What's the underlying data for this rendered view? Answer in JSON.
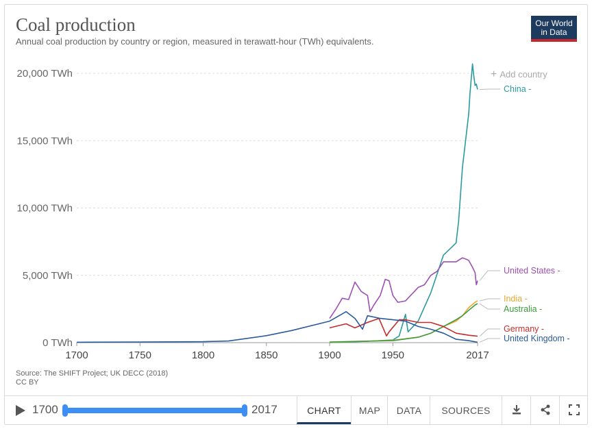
{
  "header": {
    "title": "Coal production",
    "subtitle": "Annual coal production by country or region, measured in terawatt-hour (TWh) equivalents.",
    "logo_line1": "Our World",
    "logo_line2": "in Data"
  },
  "add_country": "Add country",
  "source_line1": "Source: The SHIFT Project; UK DECC (2018)",
  "source_line2": "CC BY",
  "footer": {
    "start_year": "1700",
    "end_year": "2017",
    "tabs": [
      "CHART",
      "MAP",
      "DATA",
      "SOURCES"
    ],
    "active_tab": "CHART"
  },
  "colors": {
    "china": "#2a9a9e",
    "us": "#9d4fb4",
    "india": "#e8a730",
    "australia": "#3b9b3b",
    "germany": "#c42b2b",
    "uk": "#2a5a9b",
    "accent": "#3d8ef5"
  },
  "chart_data": {
    "type": "line",
    "title": "Coal production",
    "xlim": [
      1700,
      2017
    ],
    "ylim": [
      0,
      20000
    ],
    "unit": "TWh",
    "y_ticks": [
      "0 TWh",
      "5,000 TWh",
      "10,000 TWh",
      "15,000 TWh",
      "20,000 TWh"
    ],
    "y_tick_values": [
      0,
      5000,
      10000,
      15000,
      20000
    ],
    "x_ticks": [
      "1700",
      "1750",
      "1800",
      "1850",
      "1900",
      "1950",
      "2017"
    ],
    "x_tick_values": [
      1700,
      1750,
      1800,
      1850,
      1900,
      1950,
      2017
    ],
    "grid": true,
    "series": [
      {
        "name": "China",
        "key": "china",
        "label": "China -",
        "x": [
          1900,
          1930,
          1950,
          1955,
          1960,
          1962,
          1970,
          1980,
          1990,
          2000,
          2002,
          2005,
          2010,
          2011,
          2013,
          2014,
          2015,
          2016,
          2017
        ],
        "y": [
          0,
          100,
          200,
          500,
          2100,
          800,
          1600,
          3700,
          6500,
          7400,
          9000,
          13000,
          17000,
          18500,
          20700,
          19800,
          19100,
          19200,
          18800
        ]
      },
      {
        "name": "United States",
        "key": "us",
        "label": "United States -",
        "x": [
          1900,
          1905,
          1910,
          1915,
          1920,
          1925,
          1930,
          1932,
          1935,
          1940,
          1944,
          1947,
          1950,
          1954,
          1960,
          1965,
          1970,
          1975,
          1980,
          1985,
          1990,
          1995,
          2000,
          2005,
          2008,
          2010,
          2013,
          2015,
          2016,
          2017
        ],
        "y": [
          1800,
          2500,
          3300,
          3200,
          4500,
          3800,
          3500,
          2300,
          2800,
          3500,
          4700,
          4600,
          3500,
          3000,
          3100,
          3600,
          4100,
          4300,
          5000,
          5300,
          6000,
          6000,
          6000,
          6300,
          6200,
          6100,
          5600,
          5200,
          4300,
          4600
        ]
      },
      {
        "name": "India",
        "key": "india",
        "label": "India -",
        "x": [
          1900,
          1950,
          1970,
          1980,
          1990,
          2000,
          2005,
          2010,
          2015,
          2017
        ],
        "y": [
          20,
          180,
          400,
          700,
          1200,
          1600,
          2000,
          2600,
          3000,
          3100
        ]
      },
      {
        "name": "Australia",
        "key": "australia",
        "label": "Australia -",
        "x": [
          1900,
          1950,
          1970,
          1980,
          1990,
          2000,
          2005,
          2010,
          2015,
          2017
        ],
        "y": [
          50,
          150,
          400,
          700,
          1200,
          1700,
          2000,
          2400,
          2800,
          2900
        ]
      },
      {
        "name": "Germany",
        "key": "germany",
        "label": "Germany -",
        "x": [
          1900,
          1913,
          1920,
          1930,
          1939,
          1945,
          1947,
          1955,
          1960,
          1970,
          1980,
          1990,
          2000,
          2010,
          2017
        ],
        "y": [
          1100,
          1400,
          1100,
          1500,
          1800,
          500,
          800,
          1700,
          1700,
          1500,
          1500,
          1200,
          700,
          550,
          480
        ]
      },
      {
        "name": "United Kingdom",
        "key": "uk",
        "label": "United Kingdom -",
        "x": [
          1700,
          1750,
          1800,
          1820,
          1850,
          1870,
          1900,
          1913,
          1920,
          1926,
          1930,
          1940,
          1950,
          1960,
          1970,
          1980,
          1990,
          2000,
          2010,
          2017
        ],
        "y": [
          30,
          50,
          70,
          120,
          520,
          900,
          1600,
          2300,
          1800,
          1000,
          2000,
          1800,
          1700,
          1600,
          1200,
          1000,
          700,
          250,
          150,
          30
        ]
      }
    ]
  }
}
